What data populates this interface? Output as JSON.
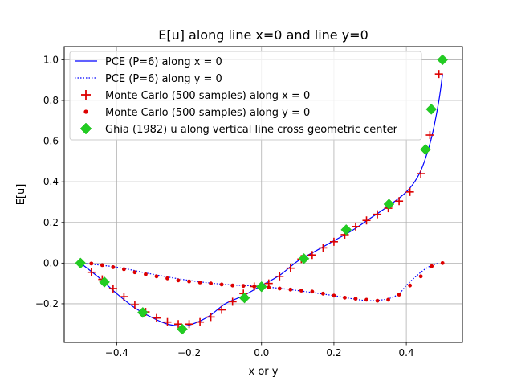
{
  "chart_data": {
    "type": "line",
    "title": "E[u] along line x=0 and line y=0",
    "xlabel": "x or y",
    "ylabel": "E[u]",
    "xlim": [
      -0.545,
      0.555
    ],
    "ylim": [
      -0.39,
      1.065
    ],
    "xticks": [
      -0.4,
      -0.2,
      0.0,
      0.2,
      0.4
    ],
    "yticks": [
      -0.2,
      0.0,
      0.2,
      0.4,
      0.6,
      0.8,
      1.0
    ],
    "xtick_labels": [
      "−0.4",
      "−0.2",
      "0.0",
      "0.2",
      "0.4"
    ],
    "ytick_labels": [
      "−0.2",
      "0.0",
      "0.2",
      "0.4",
      "0.6",
      "0.8",
      "1.0"
    ],
    "grid": true,
    "legend_position": "upper-left",
    "series": [
      {
        "name": "PCE (P=6) along x = 0",
        "style": "solid-line",
        "color": "#0000ff",
        "x": [
          -0.5,
          -0.45,
          -0.4,
          -0.35,
          -0.3,
          -0.26,
          -0.22,
          -0.2,
          -0.17,
          -0.14,
          -0.1,
          -0.05,
          0.0,
          0.05,
          0.1,
          0.15,
          0.2,
          0.25,
          0.3,
          0.35,
          0.4,
          0.43,
          0.45,
          0.47,
          0.49,
          0.5
        ],
        "y": [
          0.0,
          -0.07,
          -0.15,
          -0.22,
          -0.27,
          -0.3,
          -0.31,
          -0.305,
          -0.285,
          -0.255,
          -0.2,
          -0.16,
          -0.11,
          -0.06,
          0.01,
          0.06,
          0.11,
          0.16,
          0.22,
          0.28,
          0.35,
          0.42,
          0.5,
          0.62,
          0.8,
          0.93
        ]
      },
      {
        "name": "PCE (P=6) along y = 0",
        "style": "dotted-line",
        "color": "#0000ff",
        "x": [
          -0.5,
          -0.4,
          -0.3,
          -0.2,
          -0.1,
          0.0,
          0.1,
          0.2,
          0.25,
          0.3,
          0.35,
          0.38,
          0.4,
          0.43,
          0.46,
          0.49
        ],
        "y": [
          0.0,
          -0.02,
          -0.055,
          -0.085,
          -0.105,
          -0.115,
          -0.135,
          -0.16,
          -0.175,
          -0.185,
          -0.175,
          -0.15,
          -0.11,
          -0.06,
          -0.02,
          0.0
        ]
      },
      {
        "name": "Monte Carlo (500 samples) along x = 0",
        "style": "plus-marker",
        "color": "#dd0000",
        "x": [
          -0.47,
          -0.44,
          -0.41,
          -0.38,
          -0.35,
          -0.32,
          -0.29,
          -0.26,
          -0.23,
          -0.2,
          -0.17,
          -0.14,
          -0.11,
          -0.08,
          -0.05,
          -0.02,
          0.02,
          0.05,
          0.08,
          0.11,
          0.14,
          0.17,
          0.2,
          0.23,
          0.26,
          0.29,
          0.32,
          0.35,
          0.38,
          0.41,
          0.44,
          0.465,
          0.49
        ],
        "y": [
          -0.045,
          -0.08,
          -0.125,
          -0.165,
          -0.205,
          -0.24,
          -0.27,
          -0.29,
          -0.3,
          -0.3,
          -0.29,
          -0.265,
          -0.23,
          -0.19,
          -0.15,
          -0.115,
          -0.1,
          -0.065,
          -0.025,
          0.02,
          0.04,
          0.075,
          0.105,
          0.14,
          0.18,
          0.21,
          0.24,
          0.27,
          0.305,
          0.35,
          0.44,
          0.63,
          0.93
        ]
      },
      {
        "name": "Monte Carlo (500 samples) along y = 0",
        "style": "dot-marker",
        "color": "#dd0000",
        "x": [
          -0.5,
          -0.47,
          -0.44,
          -0.41,
          -0.38,
          -0.35,
          -0.32,
          -0.29,
          -0.26,
          -0.23,
          -0.2,
          -0.17,
          -0.14,
          -0.11,
          -0.08,
          -0.05,
          -0.02,
          0.02,
          0.05,
          0.08,
          0.11,
          0.14,
          0.17,
          0.2,
          0.23,
          0.26,
          0.29,
          0.32,
          0.35,
          0.38,
          0.41,
          0.44,
          0.47,
          0.5
        ],
        "y": [
          0.0,
          -0.002,
          -0.01,
          -0.02,
          -0.03,
          -0.045,
          -0.055,
          -0.065,
          -0.075,
          -0.085,
          -0.09,
          -0.095,
          -0.1,
          -0.105,
          -0.11,
          -0.112,
          -0.115,
          -0.12,
          -0.125,
          -0.13,
          -0.135,
          -0.14,
          -0.15,
          -0.16,
          -0.17,
          -0.175,
          -0.18,
          -0.185,
          -0.18,
          -0.155,
          -0.11,
          -0.065,
          -0.015,
          0.0
        ]
      },
      {
        "name": "Ghia (1982) u along vertical line cross geometric center",
        "style": "diamond-marker",
        "color": "#22cc22",
        "x": [
          -0.5,
          -0.434,
          -0.328,
          -0.219,
          -0.047,
          0.0,
          0.117,
          0.234,
          0.352,
          0.453,
          0.469,
          0.5
        ],
        "y": [
          0.0,
          -0.093,
          -0.243,
          -0.325,
          -0.171,
          -0.116,
          0.022,
          0.164,
          0.29,
          0.559,
          0.757,
          1.0
        ]
      }
    ]
  }
}
